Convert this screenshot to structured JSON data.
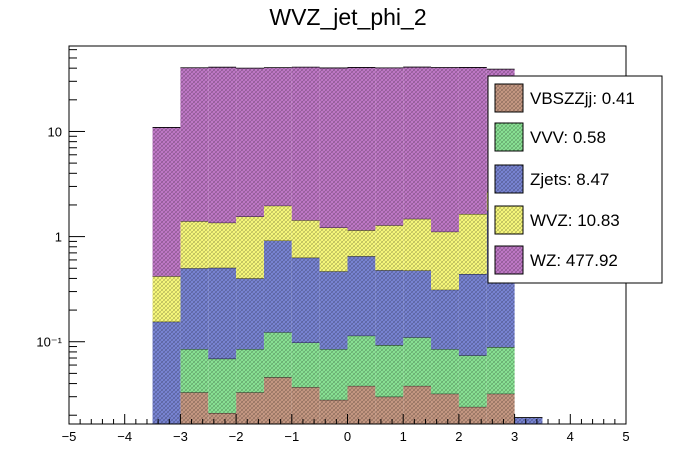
{
  "chart_data": {
    "type": "bar",
    "stacked": true,
    "title": "WVZ_jet_phi_2",
    "xlabel": "",
    "ylabel": "",
    "xlim": [
      -5,
      5
    ],
    "ylim": [
      0.0165,
      65
    ],
    "yscale": "log",
    "x_ticks": [
      "−5",
      "−4",
      "−3",
      "−2",
      "−1",
      "0",
      "1",
      "2",
      "3",
      "4",
      "5"
    ],
    "y_tick_labels": [
      {
        "value": 10,
        "text": "10"
      },
      {
        "value": 1,
        "text": "1"
      },
      {
        "value": 0.1,
        "text": "10⁻¹"
      }
    ],
    "bin_edges": [
      -3.5,
      -3.0,
      -2.5,
      -2.0,
      -1.5,
      -1.0,
      -0.5,
      0.0,
      0.5,
      1.0,
      1.5,
      2.0,
      2.5,
      3.0,
      3.5
    ],
    "series": [
      {
        "name": "VBSZZjj",
        "legend": "VBSZZjj: 0.41",
        "color": "#c89a84",
        "values": [
          0.0,
          0.033,
          0.021,
          0.033,
          0.046,
          0.037,
          0.028,
          0.038,
          0.03,
          0.038,
          0.032,
          0.024,
          0.032,
          0.0
        ]
      },
      {
        "name": "VVV",
        "legend": "VVV: 0.58",
        "color": "#8be596",
        "values": [
          0.0,
          0.052,
          0.048,
          0.052,
          0.077,
          0.061,
          0.057,
          0.076,
          0.063,
          0.072,
          0.053,
          0.05,
          0.057,
          0.0
        ]
      },
      {
        "name": "Zjets",
        "legend": "Zjets: 8.47",
        "color": "#7a86d6",
        "values": [
          0.155,
          0.415,
          0.436,
          0.315,
          0.792,
          0.532,
          0.382,
          0.537,
          0.386,
          0.366,
          0.227,
          0.367,
          1.675,
          0.019
        ]
      },
      {
        "name": "WVZ",
        "legend": "WVZ: 10.83",
        "color": "#fbfc7d",
        "values": [
          0.265,
          0.9,
          0.85,
          1.15,
          1.05,
          0.8,
          0.75,
          0.5,
          0.8,
          1.0,
          0.8,
          1.2,
          0.9,
          0.0
        ]
      },
      {
        "name": "WZ",
        "legend": "WZ: 477.92",
        "color": "#c27ac9",
        "values": [
          10.5,
          39.0,
          39.5,
          38.5,
          38.5,
          39.5,
          39.0,
          39.5,
          39.0,
          39.5,
          39.5,
          39.0,
          36.5,
          0.0
        ]
      }
    ],
    "legend_position": "top-right"
  }
}
